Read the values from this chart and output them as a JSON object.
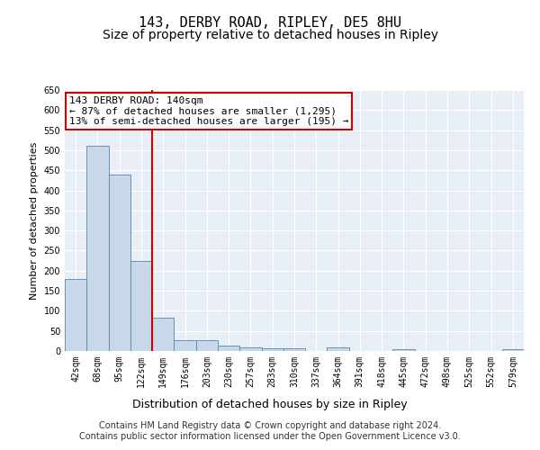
{
  "title": "143, DERBY ROAD, RIPLEY, DE5 8HU",
  "subtitle": "Size of property relative to detached houses in Ripley",
  "xlabel": "Distribution of detached houses by size in Ripley",
  "ylabel": "Number of detached properties",
  "categories": [
    "42sqm",
    "68sqm",
    "95sqm",
    "122sqm",
    "149sqm",
    "176sqm",
    "203sqm",
    "230sqm",
    "257sqm",
    "283sqm",
    "310sqm",
    "337sqm",
    "364sqm",
    "391sqm",
    "418sqm",
    "445sqm",
    "472sqm",
    "498sqm",
    "525sqm",
    "552sqm",
    "579sqm"
  ],
  "values": [
    180,
    510,
    440,
    225,
    82,
    28,
    28,
    14,
    8,
    7,
    7,
    0,
    8,
    0,
    0,
    5,
    0,
    0,
    0,
    0,
    5
  ],
  "bar_color": "#c8d8e8",
  "bar_edge_color": "#5588aa",
  "vline_x_index": 3.5,
  "vline_color": "#cc0000",
  "annotation_text": "143 DERBY ROAD: 140sqm\n← 87% of detached houses are smaller (1,295)\n13% of semi-detached houses are larger (195) →",
  "annotation_box_color": "#ffffff",
  "annotation_box_edge": "#cc0000",
  "ylim": [
    0,
    650
  ],
  "yticks": [
    0,
    50,
    100,
    150,
    200,
    250,
    300,
    350,
    400,
    450,
    500,
    550,
    600,
    650
  ],
  "bg_color": "#e8eef5",
  "footer": "Contains HM Land Registry data © Crown copyright and database right 2024.\nContains public sector information licensed under the Open Government Licence v3.0.",
  "title_fontsize": 11,
  "subtitle_fontsize": 10,
  "xlabel_fontsize": 9,
  "ylabel_fontsize": 8,
  "annotation_fontsize": 8,
  "footer_fontsize": 7,
  "tick_fontsize": 7
}
